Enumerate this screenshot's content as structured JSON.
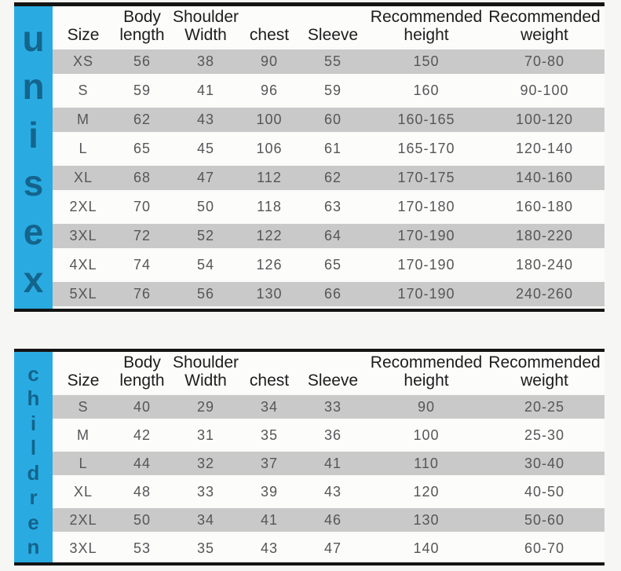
{
  "colors": {
    "strip_bg": "#29abe2",
    "strip_text": "#14648c",
    "stripe_row": "#c9c9c9",
    "plain_row": "#fcfcfb",
    "border": "#141414"
  },
  "tables": [
    {
      "group": "unisex",
      "letters": [
        "u",
        "n",
        "i",
        "s",
        "e",
        "x"
      ],
      "columns": [
        "Size",
        "Body length",
        "Shoulder Width",
        "chest",
        "Sleeve",
        "Recommended height",
        "Recommended weight"
      ],
      "rows": [
        [
          "XS",
          "56",
          "38",
          "90",
          "55",
          "150",
          "70-80"
        ],
        [
          "S",
          "59",
          "41",
          "96",
          "59",
          "160",
          "90-100"
        ],
        [
          "M",
          "62",
          "43",
          "100",
          "60",
          "160-165",
          "100-120"
        ],
        [
          "L",
          "65",
          "45",
          "106",
          "61",
          "165-170",
          "120-140"
        ],
        [
          "XL",
          "68",
          "47",
          "112",
          "62",
          "170-175",
          "140-160"
        ],
        [
          "2XL",
          "70",
          "50",
          "118",
          "63",
          "170-180",
          "160-180"
        ],
        [
          "3XL",
          "72",
          "52",
          "122",
          "64",
          "170-190",
          "180-220"
        ],
        [
          "4XL",
          "74",
          "54",
          "126",
          "65",
          "170-190",
          "180-240"
        ],
        [
          "5XL",
          "76",
          "56",
          "130",
          "66",
          "170-190",
          "240-260"
        ]
      ]
    },
    {
      "group": "children",
      "letters": [
        "c",
        "h",
        "i",
        "l",
        "d",
        "r",
        "e",
        "n"
      ],
      "columns": [
        "Size",
        "Body length",
        "Shoulder Width",
        "chest",
        "Sleeve",
        "Recommended height",
        "Recommended weight"
      ],
      "rows": [
        [
          "S",
          "40",
          "29",
          "34",
          "33",
          "90",
          "20-25"
        ],
        [
          "M",
          "42",
          "31",
          "35",
          "36",
          "100",
          "25-30"
        ],
        [
          "L",
          "44",
          "32",
          "37",
          "41",
          "110",
          "30-40"
        ],
        [
          "XL",
          "48",
          "33",
          "39",
          "43",
          "120",
          "40-50"
        ],
        [
          "2XL",
          "50",
          "34",
          "41",
          "46",
          "130",
          "50-60"
        ],
        [
          "3XL",
          "53",
          "35",
          "43",
          "47",
          "140",
          "60-70"
        ]
      ]
    }
  ]
}
